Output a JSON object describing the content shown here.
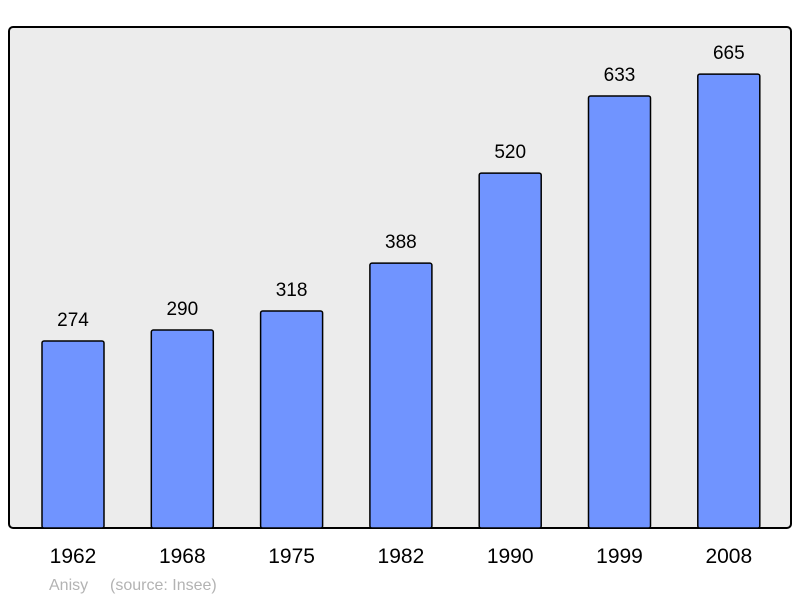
{
  "chart_data": {
    "type": "bar",
    "categories": [
      "1962",
      "1968",
      "1975",
      "1982",
      "1990",
      "1999",
      "2008"
    ],
    "values": [
      274,
      290,
      318,
      388,
      520,
      633,
      665
    ],
    "title": "",
    "xlabel": "",
    "ylabel": "",
    "ylim": [
      0,
      734
    ],
    "grid": false,
    "data_labels": true,
    "colors": {
      "bar": "#7094ff",
      "plot_background": "#ececec",
      "border": "#000000"
    }
  },
  "footer": {
    "place": "Anisy",
    "source": "(source: Insee)"
  }
}
